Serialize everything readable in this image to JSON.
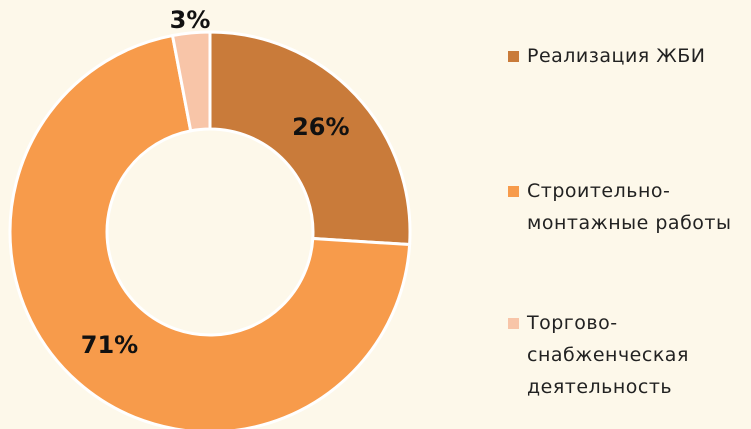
{
  "chart_data": {
    "type": "pie",
    "categories": [
      "Реализация ЖБИ",
      "Строительно-монтажные работы",
      "Торгово-снабженческая деятельность"
    ],
    "values": [
      26,
      71,
      3
    ],
    "value_labels": [
      "26%",
      "71%",
      "3%"
    ],
    "colors": [
      "#c97b3a",
      "#f79b4b",
      "#f8c5a8"
    ],
    "donut": true,
    "legend": "right"
  }
}
